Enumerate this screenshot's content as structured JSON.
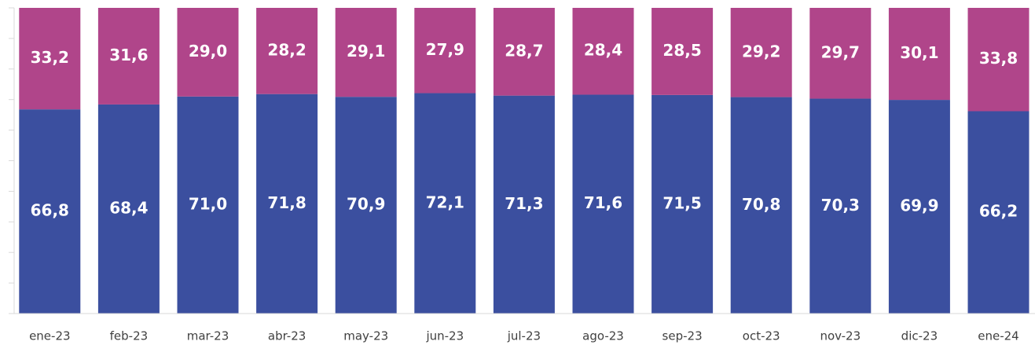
{
  "chart_data": {
    "type": "stacked_bar",
    "categories": [
      "ene-23",
      "feb-23",
      "mar-23",
      "abr-23",
      "may-23",
      "jun-23",
      "jul-23",
      "ago-23",
      "sep-23",
      "oct-23",
      "nov-23",
      "dic-23",
      "ene-24"
    ],
    "series": [
      {
        "color": "#3b4f9f",
        "values": [
          66.8,
          68.4,
          71.0,
          71.8,
          70.9,
          72.1,
          71.3,
          71.6,
          71.5,
          70.8,
          70.3,
          69.9,
          66.2
        ],
        "value_labels": [
          "66,8",
          "68,4",
          "71,0",
          "71,8",
          "70,9",
          "72,1",
          "71,3",
          "71,6",
          "71,5",
          "70,8",
          "70,3",
          "69,9",
          "66,2"
        ]
      },
      {
        "color": "#b0458a",
        "values": [
          33.2,
          31.6,
          29.0,
          28.2,
          29.1,
          27.9,
          28.7,
          28.4,
          28.5,
          29.2,
          29.7,
          30.1,
          33.8
        ],
        "value_labels": [
          "33,2",
          "31,6",
          "29,0",
          "28,2",
          "29,1",
          "27,9",
          "28,7",
          "28,4",
          "28,5",
          "29,2",
          "29,7",
          "30,1",
          "33,8"
        ]
      }
    ],
    "ylim": [
      0,
      100
    ],
    "yticks": [
      0,
      10,
      20,
      30,
      40,
      50,
      60,
      70,
      80,
      90,
      100
    ]
  }
}
